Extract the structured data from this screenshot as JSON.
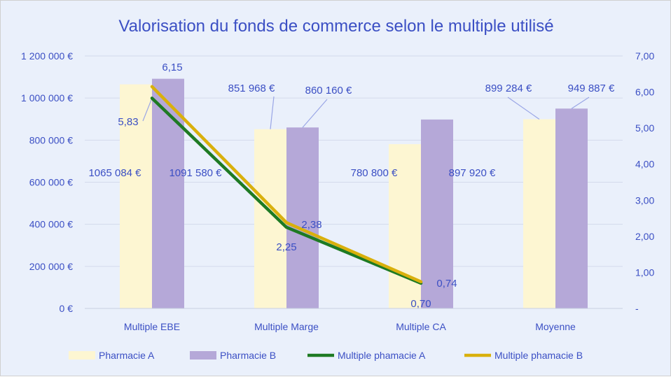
{
  "chart_data": {
    "type": "bar",
    "title": "Valorisation du fonds de commerce selon le multiple utilisé",
    "categories": [
      "Multiple EBE",
      "Multiple Marge",
      "Multiple CA",
      "Moyenne"
    ],
    "y_axis": {
      "range": [
        0,
        1200000
      ],
      "ticks": [
        "0 €",
        "200 000 €",
        "400 000 €",
        "600 000 €",
        "800 000 €",
        "1 000 000 €",
        "1 200 000 €"
      ]
    },
    "y2_axis": {
      "range": [
        0,
        7
      ],
      "ticks": [
        "-",
        "1,00",
        "2,00",
        "3,00",
        "4,00",
        "5,00",
        "6,00",
        "7,00"
      ]
    },
    "grid": true,
    "legend_position": "bottom",
    "bar_series": [
      {
        "name": "Pharmacie A",
        "color": "#fdf6d2",
        "values": [
          1065084,
          851968,
          780800,
          899284
        ],
        "labels": [
          "1065 084 €",
          "851 968 €",
          "780 800 €",
          "899 284 €"
        ]
      },
      {
        "name": "Pharmacie B",
        "color": "#b5a8d8",
        "values": [
          1091580,
          860160,
          897920,
          949887
        ],
        "labels": [
          "1091 580 €",
          "860 160 €",
          "897 920 €",
          "949 887 €"
        ]
      }
    ],
    "line_series": [
      {
        "name": "Multiple phamacie A",
        "color": "#1e7a23",
        "values": [
          5.83,
          2.25,
          0.7
        ],
        "labels": [
          "5,83",
          "2,25",
          "0,70"
        ]
      },
      {
        "name": "Multiple phamacie B",
        "color": "#d9b00c",
        "values": [
          6.15,
          2.38,
          0.74
        ],
        "labels": [
          "6,15",
          "2,38",
          "0,74"
        ]
      }
    ],
    "colors": {
      "text": "#3b4fc4",
      "grid": "#d3daeb",
      "leader": "#9aa6e6"
    }
  }
}
